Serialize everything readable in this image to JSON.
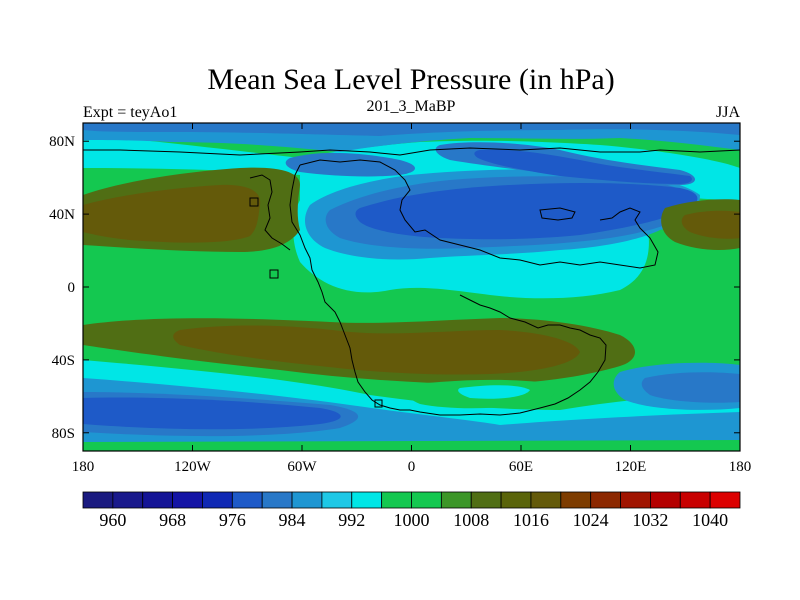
{
  "chart_data": {
    "type": "heatmap",
    "title": "Mean Sea Level Pressure (in hPa)",
    "left_label": "Expt = teyAo1",
    "center_label": "201_3_MaBP",
    "right_label": "JJA",
    "x_ticks": [
      {
        "value": -180,
        "label": "180"
      },
      {
        "value": -120,
        "label": "120W"
      },
      {
        "value": -60,
        "label": "60W"
      },
      {
        "value": 0,
        "label": "0"
      },
      {
        "value": 60,
        "label": "60E"
      },
      {
        "value": 120,
        "label": "120E"
      },
      {
        "value": 180,
        "label": "180"
      }
    ],
    "y_ticks": [
      {
        "value": 80,
        "label": "80N"
      },
      {
        "value": 40,
        "label": "40N"
      },
      {
        "value": 0,
        "label": "0"
      },
      {
        "value": -40,
        "label": "40S"
      },
      {
        "value": -80,
        "label": "80S"
      }
    ],
    "xlim": [
      -180,
      180
    ],
    "ylim": [
      -90,
      90
    ],
    "colorbar": {
      "colors": [
        "#1a1a80",
        "#19198c",
        "#141496",
        "#1414a5",
        "#0f28b4",
        "#1e5ac8",
        "#2878c8",
        "#1e96d2",
        "#1ec8e6",
        "#00e6e6",
        "#14c850",
        "#14c850",
        "#3c9628",
        "#506e14",
        "#5a640a",
        "#645a0a",
        "#7d3c00",
        "#8c2800",
        "#a01400",
        "#b40000",
        "#c80000",
        "#dc0000"
      ],
      "tick_labels": [
        "960",
        "968",
        "976",
        "984",
        "992",
        "1000",
        "1008",
        "1016",
        "1024",
        "1032",
        "1040"
      ]
    },
    "level_colors": {
      "deep_blue": "#1e5ac8",
      "blue": "#2878c8",
      "light_blue": "#1e96d2",
      "cyan": "#00e6e6",
      "green": "#14c850",
      "olive": "#506e14",
      "dark_olive": "#645a0a"
    }
  }
}
